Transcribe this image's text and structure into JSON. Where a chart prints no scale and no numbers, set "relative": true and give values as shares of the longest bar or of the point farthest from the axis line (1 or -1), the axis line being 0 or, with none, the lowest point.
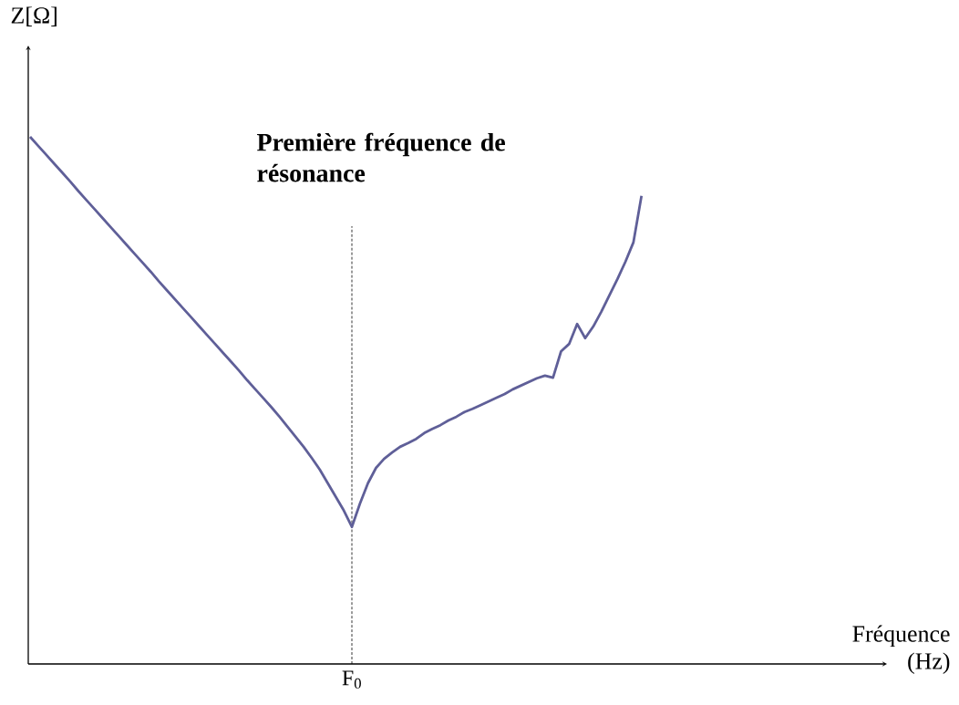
{
  "chart_data": {
    "type": "line",
    "relative": true,
    "ylabel": "Z[Ω]",
    "annotations": [
      "Première fréquence de résonance",
      "F$_{0}$",
      "Fréquence (Hz)"
    ],
    "categories": [
      null,
      null,
      null,
      null,
      null,
      null,
      null,
      null,
      null,
      null,
      null,
      null,
      null,
      null,
      null,
      null,
      null,
      null,
      null,
      null,
      null,
      null,
      null,
      null,
      null,
      null,
      null,
      null,
      null,
      null,
      null,
      null,
      null,
      null,
      null,
      null,
      null,
      null,
      null,
      null,
      null,
      null,
      null,
      null,
      null,
      null,
      null,
      null,
      null,
      null,
      null,
      null,
      null,
      null,
      null,
      null,
      null,
      null,
      null,
      null,
      null,
      null,
      null,
      null,
      null,
      null,
      null,
      null,
      null,
      null,
      null,
      null,
      null,
      null,
      null,
      null,
      null
    ],
    "series": [
      {
        "color": "#5f5f98",
        "values": [
          1.0,
          0.983,
          0.966,
          0.949,
          0.932,
          0.915,
          0.897,
          0.88,
          0.863,
          0.846,
          0.829,
          0.812,
          0.795,
          0.778,
          0.761,
          0.744,
          0.726,
          0.709,
          0.692,
          0.675,
          0.658,
          0.641,
          0.624,
          0.607,
          0.59,
          0.573,
          0.556,
          0.538,
          0.521,
          0.504,
          0.487,
          0.469,
          0.45,
          0.431,
          0.412,
          0.391,
          0.369,
          0.343,
          0.317,
          0.291,
          0.26,
          0.304,
          0.343,
          0.372,
          0.389,
          0.401,
          0.412,
          0.419,
          0.427,
          0.438,
          0.446,
          0.453,
          0.462,
          0.469,
          0.478,
          0.484,
          0.491,
          0.498,
          0.505,
          0.512,
          0.521,
          0.528,
          0.535,
          0.542,
          0.547,
          0.543,
          0.593,
          0.607,
          0.645,
          0.618,
          0.64,
          0.668,
          0.699,
          0.73,
          0.763,
          0.8,
          0.888
        ]
      }
    ],
    "marker": "none",
    "line_style": "solid"
  }
}
